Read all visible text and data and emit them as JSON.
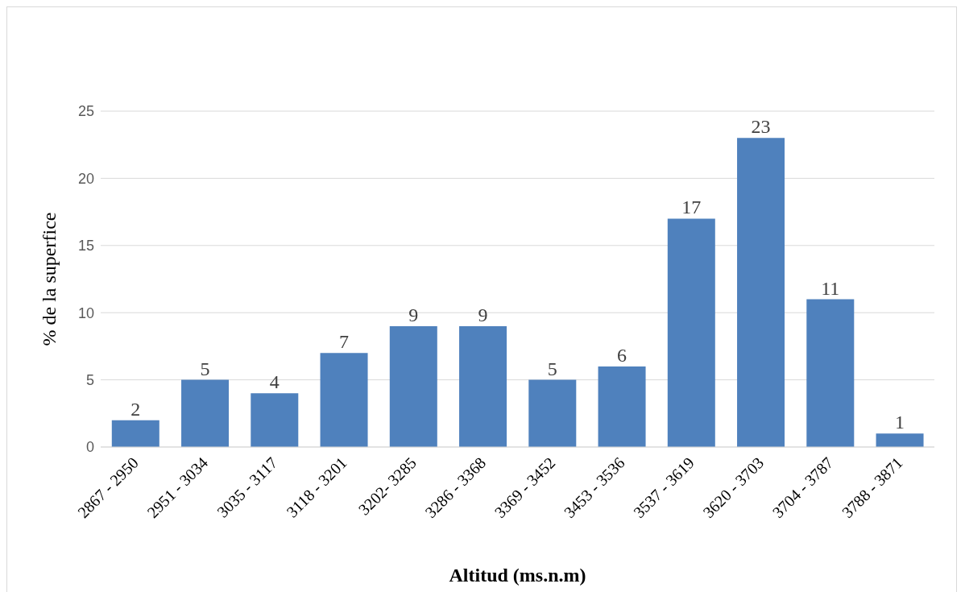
{
  "chart_data": {
    "type": "bar",
    "xlabel": "Altitud (ms.n.m)",
    "ylabel": "% de la superfice",
    "categories": [
      "2867 - 2950",
      "2951 - 3034",
      "3035 - 3117",
      "3118 - 3201",
      "3202- 3285",
      "3286 - 3368",
      "3369 - 3452",
      "3453 - 3536",
      "3537 - 3619",
      "3620 - 3703",
      "3704 - 3787",
      "3788 - 3871"
    ],
    "values": [
      2,
      5,
      4,
      7,
      9,
      9,
      5,
      6,
      17,
      23,
      11,
      1
    ],
    "color": "#4f81bd",
    "ylim": [
      0,
      25
    ],
    "yticks": [
      0,
      5,
      10,
      15,
      20,
      25
    ],
    "grid": "y",
    "data_labels": true,
    "legend": false
  }
}
